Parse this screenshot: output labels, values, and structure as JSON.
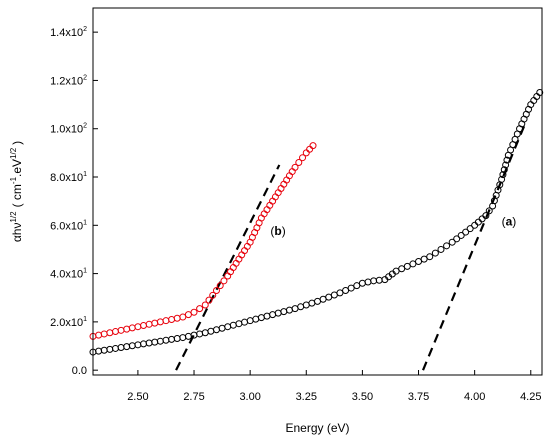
{
  "chart_data": {
    "type": "scatter",
    "xlabel": "Energy  (eV)",
    "ylabel": "αhν^1/2  ( cm^-1 .eV^1/2 )",
    "ylabel_parts": {
      "main": "αhν",
      "main_sup": "1/2",
      "open": "( cm",
      "unit_sup1": "-1",
      "mid": ".eV",
      "unit_sup2": "1/2",
      "close": ")"
    },
    "xlim": [
      2.3,
      4.3
    ],
    "ylim": [
      -2,
      150
    ],
    "x_ticks": [
      {
        "value": 2.5,
        "label": "2.50"
      },
      {
        "value": 2.75,
        "label": "2.75"
      },
      {
        "value": 3.0,
        "label": "3.00"
      },
      {
        "value": 3.25,
        "label": "3.25"
      },
      {
        "value": 3.5,
        "label": "3.50"
      },
      {
        "value": 3.75,
        "label": "3.75"
      },
      {
        "value": 4.0,
        "label": "4.00"
      },
      {
        "value": 4.25,
        "label": "4.25"
      }
    ],
    "y_ticks": [
      {
        "value": 0,
        "label": "0.0",
        "exp": ""
      },
      {
        "value": 20,
        "label": "2.0x10",
        "exp": "1"
      },
      {
        "value": 40,
        "label": "4.0x10",
        "exp": "1"
      },
      {
        "value": 60,
        "label": "6.0x10",
        "exp": "1"
      },
      {
        "value": 80,
        "label": "8.0x10",
        "exp": "1"
      },
      {
        "value": 100,
        "label": "1.0x10",
        "exp": "2"
      },
      {
        "value": 120,
        "label": "1.2x10",
        "exp": "2"
      },
      {
        "value": 140,
        "label": "1.4x10",
        "exp": "2"
      }
    ],
    "annotations": [
      {
        "text": "(a)",
        "open": "(",
        "letter": "a",
        "close": ")",
        "x": 4.12,
        "y": 60
      },
      {
        "text": "(b)",
        "open": "(",
        "letter": "b",
        "close": ")",
        "x": 3.09,
        "y": 56
      }
    ],
    "series": [
      {
        "color": "#000000",
        "marker": "open-circle",
        "x": [
          2.3,
          2.4,
          2.5,
          2.6,
          2.7,
          2.8,
          2.9,
          3.0,
          3.1,
          3.2,
          3.3,
          3.4,
          3.5,
          3.55,
          3.6,
          3.65,
          3.7,
          3.8,
          3.85,
          3.9,
          4.0,
          4.05,
          4.08,
          4.12,
          4.15,
          4.2,
          4.25,
          4.29
        ],
        "y": [
          7.5,
          9,
          10.5,
          12,
          13.5,
          15.5,
          18,
          20.5,
          23,
          25.5,
          28.5,
          32,
          36,
          37,
          37.5,
          41,
          43,
          47,
          50,
          53,
          60,
          64,
          68,
          79,
          89,
          100,
          110,
          115
        ]
      },
      {
        "color": "#e8000b",
        "marker": "open-circle",
        "x": [
          2.3,
          2.4,
          2.5,
          2.6,
          2.7,
          2.75,
          2.8,
          2.85,
          2.9,
          2.95,
          3.0,
          3.05,
          3.1,
          3.15,
          3.2,
          3.25,
          3.28
        ],
        "y": [
          14,
          16,
          18,
          20,
          22,
          24,
          27,
          33,
          39,
          46,
          53,
          63,
          70,
          77,
          84,
          90,
          93
        ]
      }
    ],
    "fit_lines": [
      {
        "x": [
          3.77,
          4.22
        ],
        "y": [
          0,
          101
        ]
      },
      {
        "x": [
          2.67,
          3.13
        ],
        "y": [
          0,
          85
        ]
      }
    ]
  }
}
